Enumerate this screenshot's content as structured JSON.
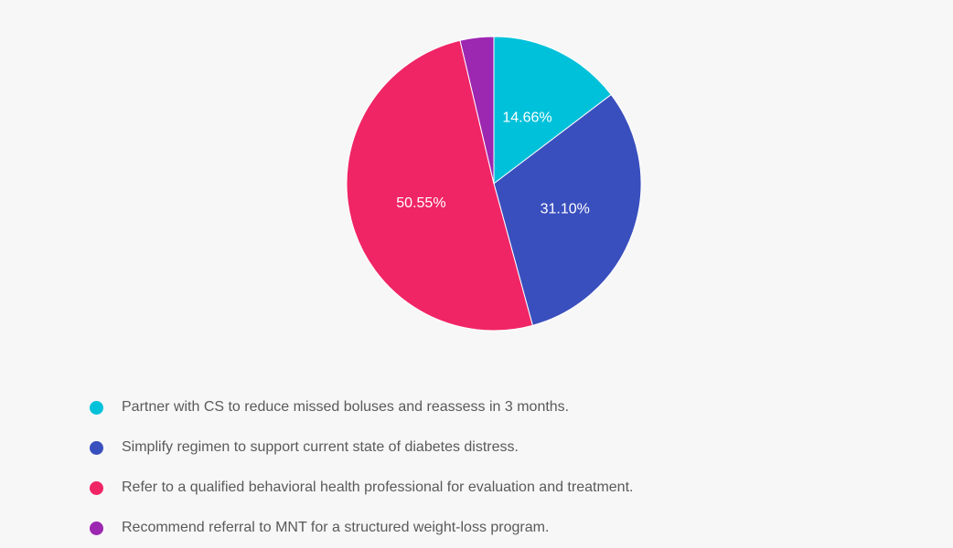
{
  "chart_data": {
    "type": "pie",
    "title": "",
    "start": "top, clockwise",
    "legend_position": "bottom",
    "slices": [
      {
        "label": "Partner with CS to reduce missed boluses and reassess in 3 months.",
        "value": 14.66,
        "display": "14.66%",
        "color": "#00c1da"
      },
      {
        "label": "Simplify regimen to support current state of diabetes distress.",
        "value": 31.1,
        "display": "31.10%",
        "color": "#3a4fbe"
      },
      {
        "label": "Refer to a qualified behavioral health professional for evaluation and treatment.",
        "value": 50.55,
        "display": "50.55%",
        "color": "#f02565"
      },
      {
        "label": "Recommend referral to MNT for a structured weight-loss program.",
        "value": 3.69,
        "display": "",
        "color": "#9c27b0"
      }
    ]
  }
}
